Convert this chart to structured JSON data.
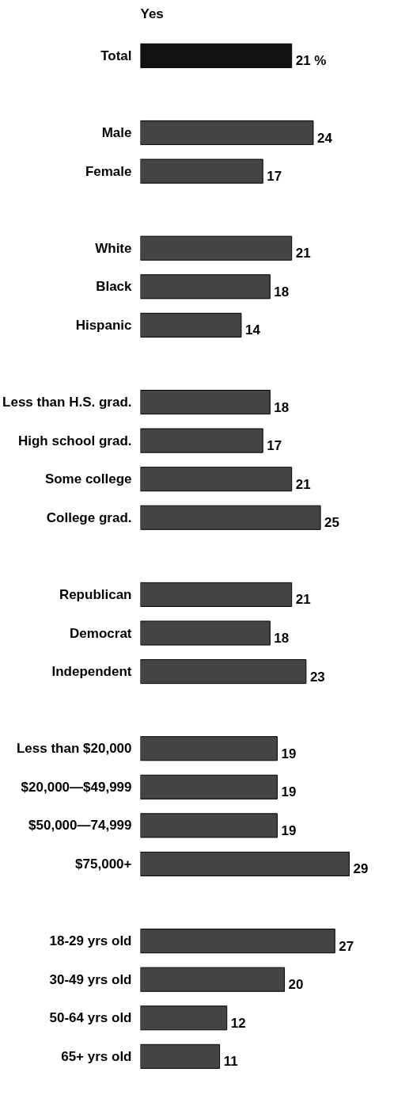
{
  "chart_data": {
    "type": "bar",
    "orientation": "horizontal",
    "title": "Yes",
    "categories": [
      "Total",
      null,
      "Male",
      "Female",
      null,
      "White",
      "Black",
      "Hispanic",
      null,
      "Less than H.S. grad.",
      "High school grad.",
      "Some college",
      "College grad.",
      null,
      "Republican",
      "Democrat",
      "Independent",
      null,
      "Less than $20,000",
      "$20,000—$49,999",
      "$50,000—74,999",
      "$75,000+",
      null,
      "18-29 yrs old",
      "30-49 yrs old",
      "50-64 yrs old",
      "65+ yrs old"
    ],
    "values": [
      21,
      null,
      24,
      17,
      null,
      21,
      18,
      14,
      null,
      18,
      17,
      21,
      25,
      null,
      21,
      18,
      23,
      null,
      19,
      19,
      19,
      29,
      null,
      27,
      20,
      12,
      11
    ],
    "value_labels": [
      "21 %",
      null,
      "24",
      "17",
      null,
      "21",
      "18",
      "14",
      null,
      "18",
      "17",
      "21",
      "25",
      null,
      "21",
      "18",
      "23",
      null,
      "19",
      "19",
      "19",
      "29",
      null,
      "27",
      "20",
      "12",
      "11"
    ],
    "colors": [
      "#111111",
      null,
      "#444444",
      "#444444",
      null,
      "#444444",
      "#444444",
      "#444444",
      null,
      "#444444",
      "#444444",
      "#444444",
      "#444444",
      null,
      "#444444",
      "#444444",
      "#444444",
      null,
      "#444444",
      "#444444",
      "#444444",
      "#444444",
      null,
      "#444444",
      "#444444",
      "#444444",
      "#444444"
    ],
    "grid": false
  }
}
